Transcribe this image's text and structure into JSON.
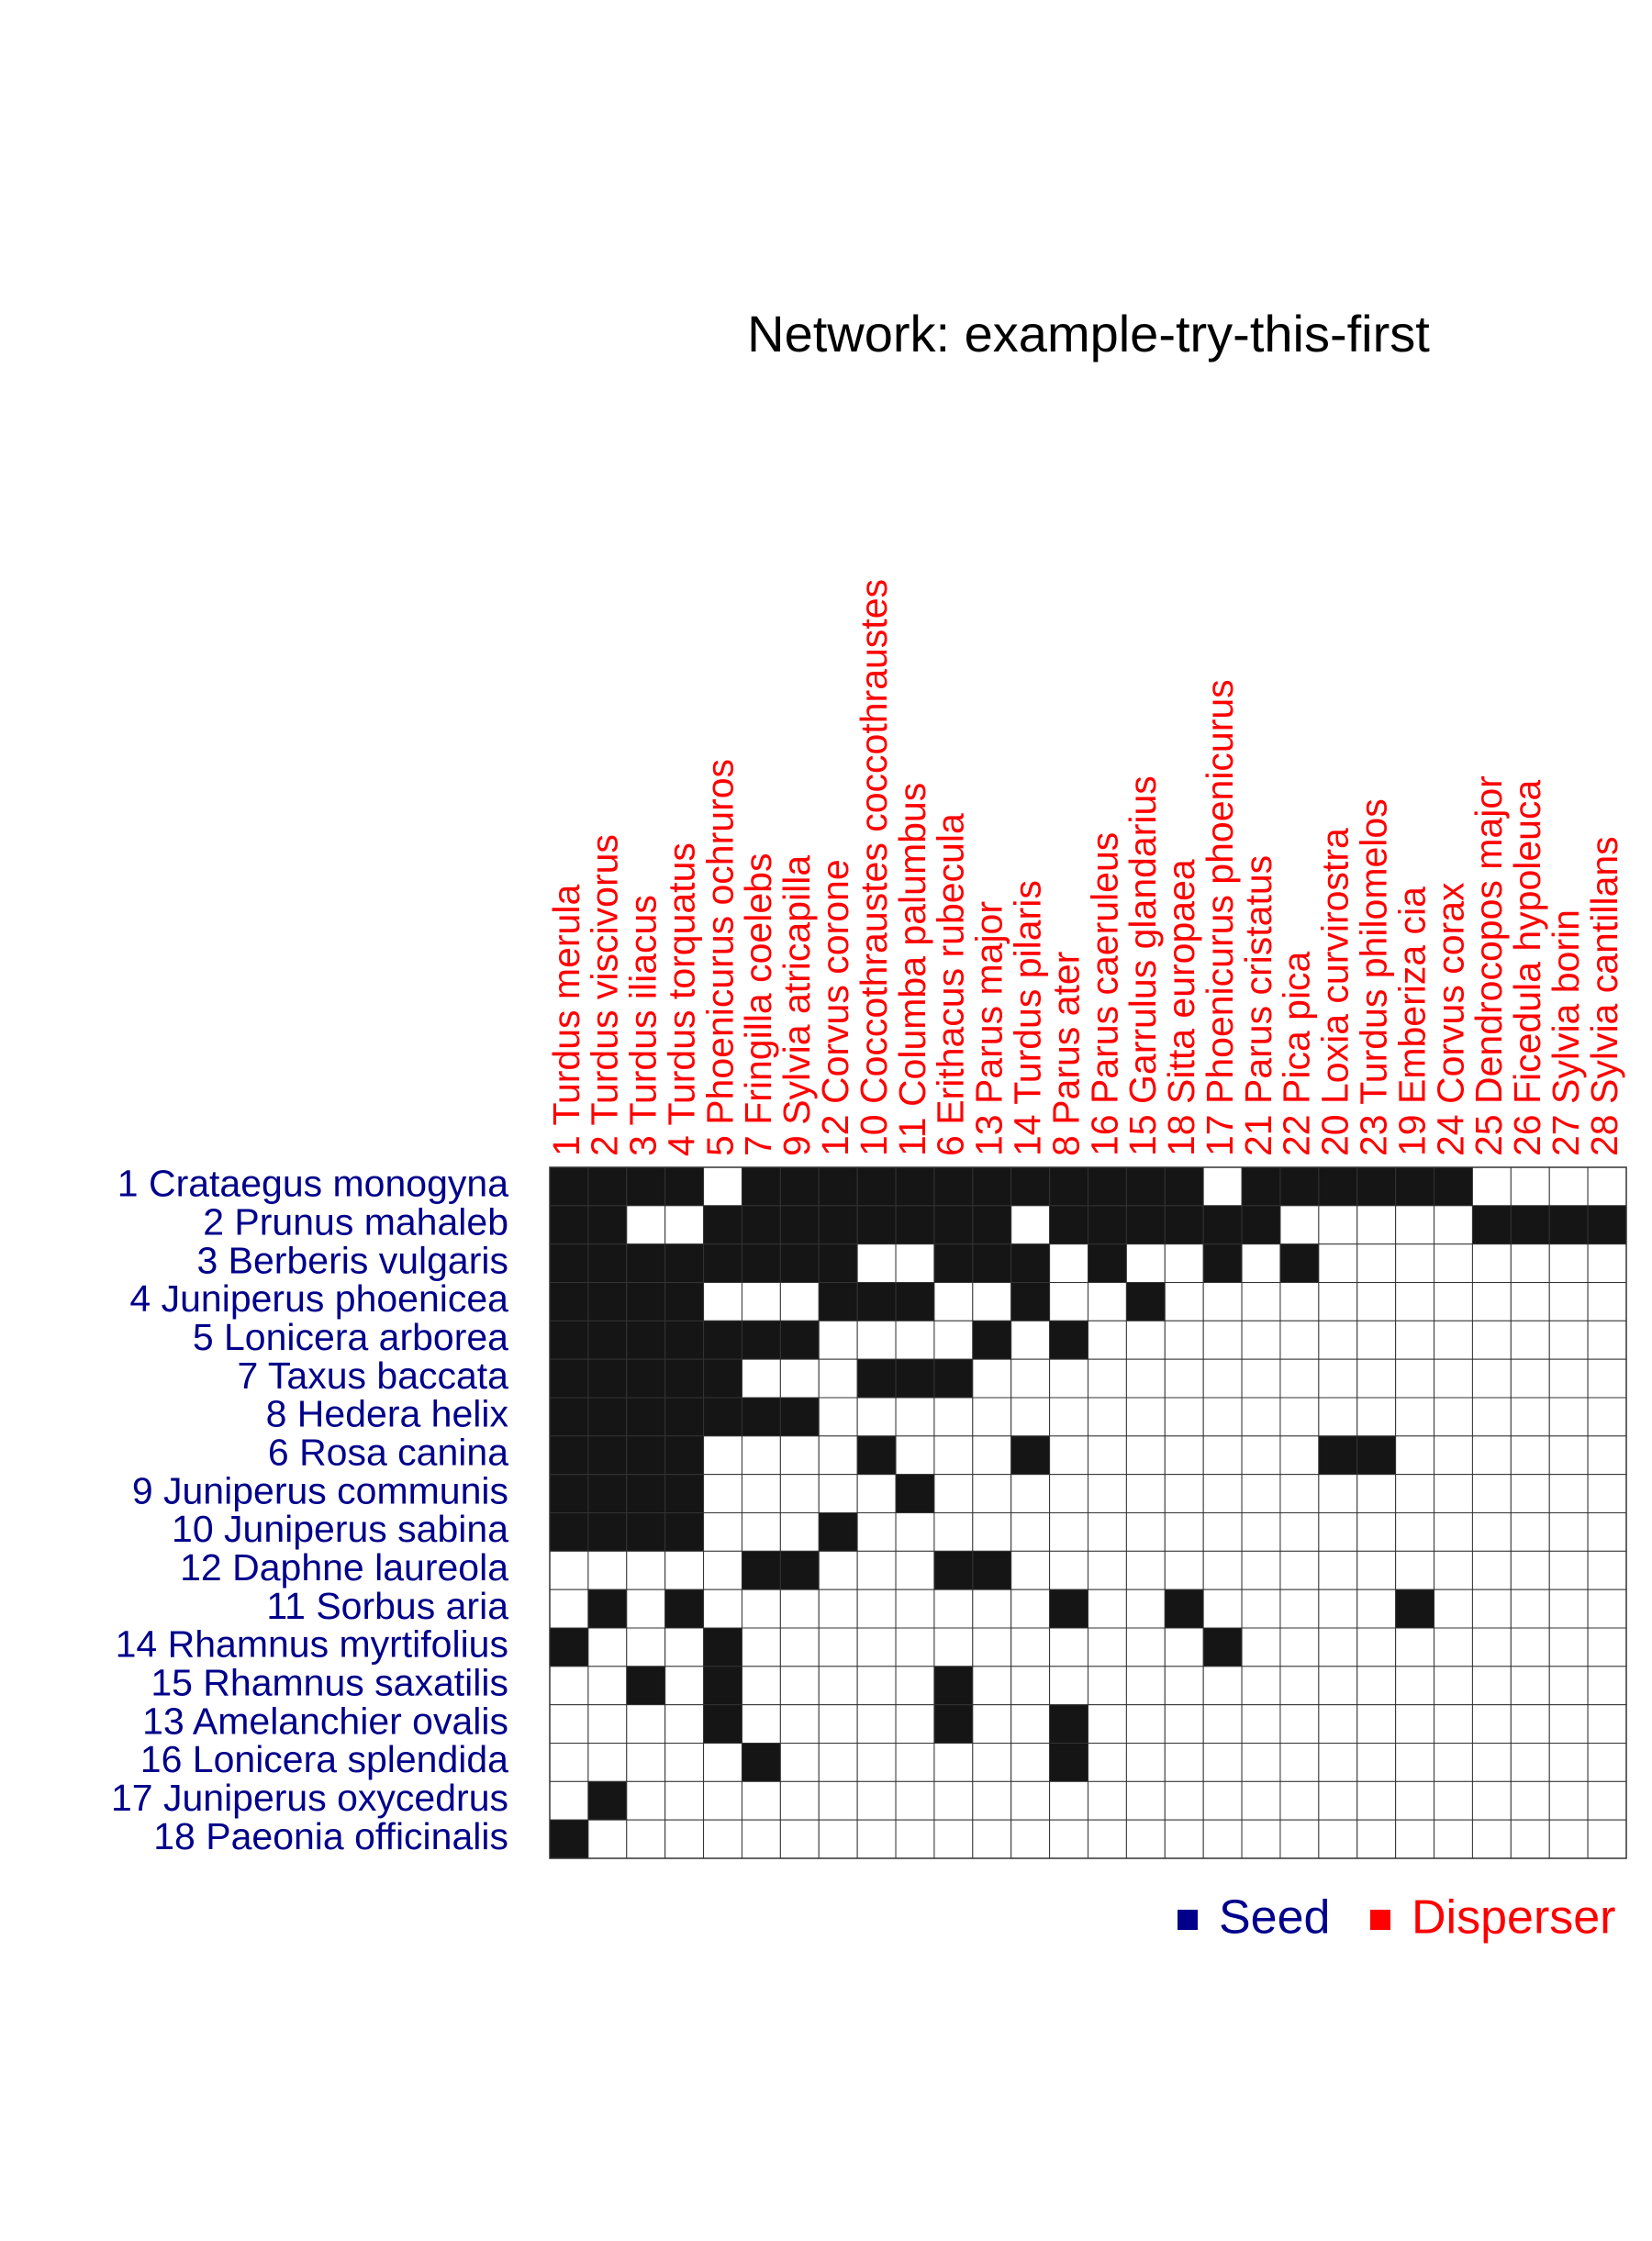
{
  "title": "Network: example-try-this-first",
  "colors": {
    "seed": "#00008B",
    "disperser": "#FF0000",
    "filled": "#151515",
    "empty": "#FFFFFF",
    "grid": "#333333",
    "title": "#000000"
  },
  "legend": {
    "position": "bottom-right",
    "items": [
      {
        "label": "Seed",
        "color": "#00008B"
      },
      {
        "label": "Disperser",
        "color": "#FF0000"
      }
    ]
  },
  "chart_data": {
    "type": "heatmap",
    "title": "Network: example-try-this-first",
    "grid": true,
    "rows": [
      "1 Crataegus monogyna",
      "2 Prunus mahaleb",
      "3 Berberis vulgaris",
      "4 Juniperus phoenicea",
      "5 Lonicera arborea",
      "7 Taxus baccata",
      "8 Hedera helix",
      "6 Rosa canina",
      "9 Juniperus communis",
      "10 Juniperus sabina",
      "12 Daphne laureola",
      "11 Sorbus aria",
      "14 Rhamnus myrtifolius",
      "15 Rhamnus saxatilis",
      "13 Amelanchier ovalis",
      "16 Lonicera splendida",
      "17 Juniperus oxycedrus",
      "18 Paeonia officinalis"
    ],
    "columns": [
      "1 Turdus merula",
      "2 Turdus viscivorus",
      "3 Turdus iliacus",
      "4 Turdus torquatus",
      "5 Phoenicurus ochruros",
      "7 Fringilla coelebs",
      "9 Sylvia atricapilla",
      "12 Corvus corone",
      "10 Coccothraustes coccothraustes",
      "11 Columba palumbus",
      "6 Erithacus rubecula",
      "13 Parus major",
      "14 Turdus pilaris",
      "8 Parus ater",
      "16 Parus caeruleus",
      "15 Garrulus glandarius",
      "18 Sitta europaea",
      "17 Phoenicurus phoenicurus",
      "21 Parus cristatus",
      "22 Pica pica",
      "20 Loxia curvirostra",
      "23 Turdus philomelos",
      "19 Emberiza cia",
      "24 Corvus corax",
      "25 Dendrocopos major",
      "26 Ficedula hypoleuca",
      "27 Sylvia borin",
      "28 Sylvia cantillans"
    ],
    "matrix": [
      [
        1,
        1,
        1,
        1,
        0,
        1,
        1,
        1,
        1,
        1,
        1,
        1,
        1,
        1,
        1,
        1,
        1,
        0,
        1,
        1,
        1,
        1,
        1,
        1,
        0,
        0,
        0,
        0
      ],
      [
        1,
        1,
        0,
        0,
        1,
        1,
        1,
        1,
        1,
        1,
        1,
        1,
        0,
        1,
        1,
        1,
        1,
        1,
        1,
        0,
        0,
        0,
        0,
        0,
        1,
        1,
        1,
        1
      ],
      [
        1,
        1,
        1,
        1,
        1,
        1,
        1,
        1,
        0,
        0,
        1,
        1,
        1,
        0,
        1,
        0,
        0,
        1,
        0,
        1,
        0,
        0,
        0,
        0,
        0,
        0,
        0,
        0
      ],
      [
        1,
        1,
        1,
        1,
        0,
        0,
        0,
        1,
        1,
        1,
        0,
        0,
        1,
        0,
        0,
        1,
        0,
        0,
        0,
        0,
        0,
        0,
        0,
        0,
        0,
        0,
        0,
        0
      ],
      [
        1,
        1,
        1,
        1,
        1,
        1,
        1,
        0,
        0,
        0,
        0,
        1,
        0,
        1,
        0,
        0,
        0,
        0,
        0,
        0,
        0,
        0,
        0,
        0,
        0,
        0,
        0,
        0
      ],
      [
        1,
        1,
        1,
        1,
        1,
        0,
        0,
        0,
        1,
        1,
        1,
        0,
        0,
        0,
        0,
        0,
        0,
        0,
        0,
        0,
        0,
        0,
        0,
        0,
        0,
        0,
        0,
        0
      ],
      [
        1,
        1,
        1,
        1,
        1,
        1,
        1,
        0,
        0,
        0,
        0,
        0,
        0,
        0,
        0,
        0,
        0,
        0,
        0,
        0,
        0,
        0,
        0,
        0,
        0,
        0,
        0,
        0
      ],
      [
        1,
        1,
        1,
        1,
        0,
        0,
        0,
        0,
        1,
        0,
        0,
        0,
        1,
        0,
        0,
        0,
        0,
        0,
        0,
        0,
        1,
        1,
        0,
        0,
        0,
        0,
        0,
        0
      ],
      [
        1,
        1,
        1,
        1,
        0,
        0,
        0,
        0,
        0,
        1,
        0,
        0,
        0,
        0,
        0,
        0,
        0,
        0,
        0,
        0,
        0,
        0,
        0,
        0,
        0,
        0,
        0,
        0
      ],
      [
        1,
        1,
        1,
        1,
        0,
        0,
        0,
        1,
        0,
        0,
        0,
        0,
        0,
        0,
        0,
        0,
        0,
        0,
        0,
        0,
        0,
        0,
        0,
        0,
        0,
        0,
        0,
        0
      ],
      [
        0,
        0,
        0,
        0,
        0,
        1,
        1,
        0,
        0,
        0,
        1,
        1,
        0,
        0,
        0,
        0,
        0,
        0,
        0,
        0,
        0,
        0,
        0,
        0,
        0,
        0,
        0,
        0
      ],
      [
        0,
        1,
        0,
        1,
        0,
        0,
        0,
        0,
        0,
        0,
        0,
        0,
        0,
        1,
        0,
        0,
        1,
        0,
        0,
        0,
        0,
        0,
        1,
        0,
        0,
        0,
        0,
        0
      ],
      [
        1,
        0,
        0,
        0,
        1,
        0,
        0,
        0,
        0,
        0,
        0,
        0,
        0,
        0,
        0,
        0,
        0,
        1,
        0,
        0,
        0,
        0,
        0,
        0,
        0,
        0,
        0,
        0
      ],
      [
        0,
        0,
        1,
        0,
        1,
        0,
        0,
        0,
        0,
        0,
        1,
        0,
        0,
        0,
        0,
        0,
        0,
        0,
        0,
        0,
        0,
        0,
        0,
        0,
        0,
        0,
        0,
        0
      ],
      [
        0,
        0,
        0,
        0,
        1,
        0,
        0,
        0,
        0,
        0,
        1,
        0,
        0,
        1,
        0,
        0,
        0,
        0,
        0,
        0,
        0,
        0,
        0,
        0,
        0,
        0,
        0,
        0
      ],
      [
        0,
        0,
        0,
        0,
        0,
        1,
        0,
        0,
        0,
        0,
        0,
        0,
        0,
        1,
        0,
        0,
        0,
        0,
        0,
        0,
        0,
        0,
        0,
        0,
        0,
        0,
        0,
        0
      ],
      [
        0,
        1,
        0,
        0,
        0,
        0,
        0,
        0,
        0,
        0,
        0,
        0,
        0,
        0,
        0,
        0,
        0,
        0,
        0,
        0,
        0,
        0,
        0,
        0,
        0,
        0,
        0,
        0
      ],
      [
        1,
        0,
        0,
        0,
        0,
        0,
        0,
        0,
        0,
        0,
        0,
        0,
        0,
        0,
        0,
        0,
        0,
        0,
        0,
        0,
        0,
        0,
        0,
        0,
        0,
        0,
        0,
        0
      ]
    ]
  }
}
